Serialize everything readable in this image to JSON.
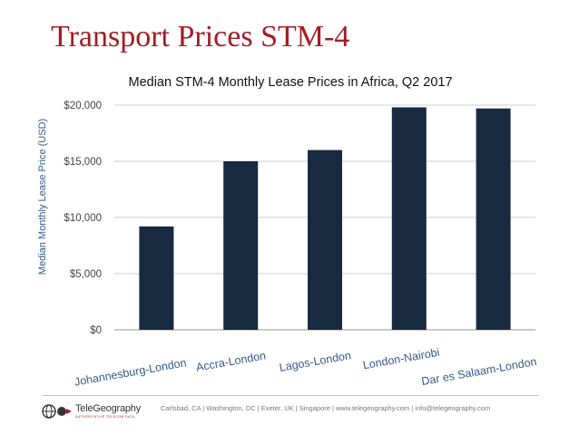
{
  "slide": {
    "title": "Transport Prices STM-4"
  },
  "chart_data": {
    "type": "bar",
    "title": "Median STM-4 Monthly Lease Prices in Africa, Q2 2017",
    "xlabel": "",
    "ylabel": "Median Monthly Lease Price (USD)",
    "categories": [
      "Johannesburg-London",
      "Accra-London",
      "Lagos-London",
      "London-Nairobi",
      "Dar es Salaam-London"
    ],
    "values": [
      9200,
      15000,
      16000,
      19800,
      19700
    ],
    "ylim": [
      0,
      20000
    ],
    "yticks": [
      0,
      5000,
      10000,
      15000,
      20000
    ],
    "ytick_labels": [
      "$0",
      "$5,000",
      "$10,000",
      "$15,000",
      "$20,000"
    ],
    "grid": true,
    "bar_color": "#182a40"
  },
  "footer": {
    "logo_name": "TeleGeography",
    "logo_tagline": "AUTHORITATIVE TELECOM DATA",
    "text": "Carlsbad, CA | Washington, DC | Exeter, UK | Singapore | www.telegeography.com | info@telegeography.com"
  }
}
